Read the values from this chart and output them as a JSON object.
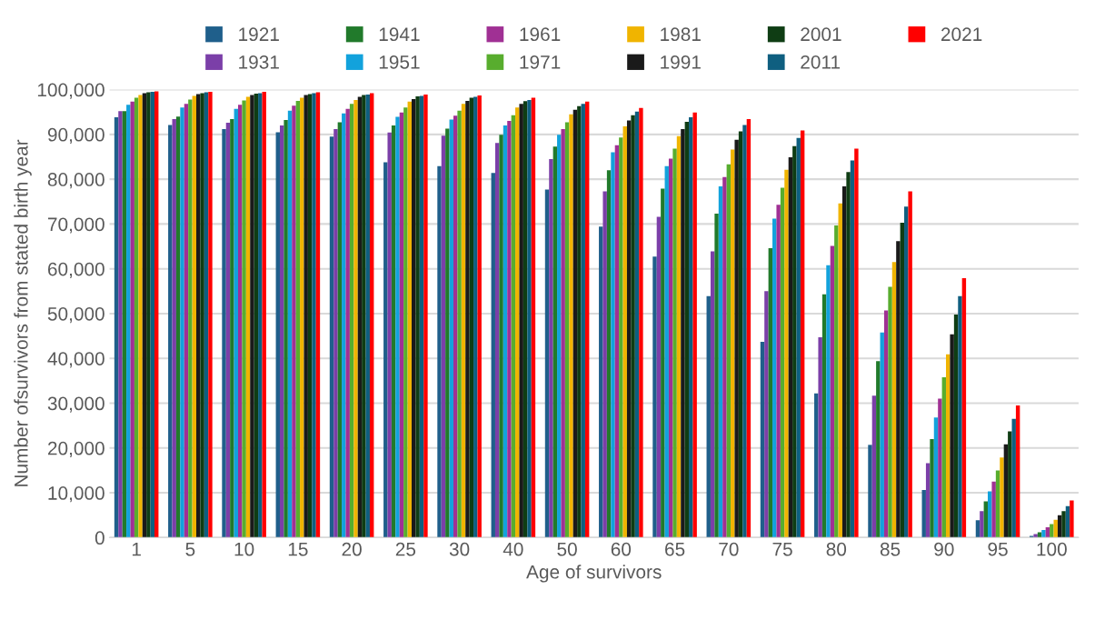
{
  "chart_data": {
    "type": "bar",
    "xlabel": "Age of survivors",
    "ylabel": "Number ofsurvivors from stated birth year",
    "categories": [
      "1",
      "5",
      "10",
      "15",
      "20",
      "25",
      "30",
      "40",
      "50",
      "60",
      "65",
      "70",
      "75",
      "80",
      "85",
      "90",
      "95",
      "100"
    ],
    "ylim": [
      0,
      100000
    ],
    "yticks": [
      {
        "value": 0,
        "label": "0"
      },
      {
        "value": 10000,
        "label": "10,000"
      },
      {
        "value": 20000,
        "label": "20,000"
      },
      {
        "value": 30000,
        "label": "30,000"
      },
      {
        "value": 40000,
        "label": "40,000"
      },
      {
        "value": 50000,
        "label": "50,000"
      },
      {
        "value": 60000,
        "label": "60,000"
      },
      {
        "value": 70000,
        "label": "70,000"
      },
      {
        "value": 80000,
        "label": "80,000"
      },
      {
        "value": 90000,
        "label": "90,000"
      },
      {
        "value": 100000,
        "label": "100,000"
      }
    ],
    "grid": "y",
    "legend": "top",
    "series": [
      {
        "name": "1921",
        "color": "#1f5f8b",
        "values": [
          93800,
          92100,
          91200,
          90500,
          89500,
          83800,
          82900,
          81400,
          77700,
          69400,
          62700,
          53900,
          43700,
          32200,
          20700,
          10600,
          3900,
          400
        ]
      },
      {
        "name": "1931",
        "color": "#7b3fa8",
        "values": [
          95200,
          93400,
          92600,
          92000,
          91200,
          90400,
          89700,
          88100,
          84500,
          77300,
          71600,
          63900,
          55000,
          44700,
          31700,
          16600,
          5900,
          800
        ]
      },
      {
        "name": "1941",
        "color": "#217a2b",
        "values": [
          95200,
          94000,
          93400,
          93200,
          92700,
          92000,
          91300,
          89900,
          87300,
          82000,
          77900,
          72300,
          64600,
          54300,
          39400,
          22000,
          8100,
          1200
        ]
      },
      {
        "name": "1951",
        "color": "#12a2dc",
        "values": [
          96600,
          96000,
          95700,
          95300,
          94700,
          93900,
          93300,
          92000,
          89900,
          86000,
          82900,
          78400,
          71200,
          60800,
          45800,
          26800,
          10300,
          1700
        ]
      },
      {
        "name": "1961",
        "color": "#a03094",
        "values": [
          97300,
          96800,
          96600,
          96400,
          95700,
          94900,
          94200,
          93000,
          91200,
          87600,
          84600,
          80500,
          74300,
          65100,
          50700,
          31000,
          12500,
          2300
        ]
      },
      {
        "name": "1971",
        "color": "#58ad2e",
        "values": [
          98200,
          97800,
          97600,
          97500,
          96800,
          96000,
          95300,
          94300,
          92700,
          89300,
          86800,
          83300,
          78100,
          69700,
          56000,
          35800,
          15000,
          3000
        ]
      },
      {
        "name": "1981",
        "color": "#f0b400",
        "values": [
          98800,
          98600,
          98400,
          98200,
          97700,
          97300,
          96800,
          96000,
          94500,
          91800,
          89600,
          86600,
          82100,
          74600,
          61500,
          40900,
          17900,
          4000
        ]
      },
      {
        "name": "1991",
        "color": "#1a1a1a",
        "values": [
          99200,
          99000,
          98800,
          98800,
          98400,
          97900,
          97500,
          96800,
          95500,
          93100,
          91200,
          88800,
          84900,
          78400,
          66200,
          45400,
          20800,
          5000
        ]
      },
      {
        "name": "2001",
        "color": "#0f3d14",
        "values": [
          99400,
          99200,
          99100,
          99000,
          98800,
          98500,
          98200,
          97400,
          96300,
          94300,
          92800,
          90700,
          87400,
          81600,
          70300,
          49800,
          23700,
          5900
        ]
      },
      {
        "name": "2011",
        "color": "#0f5f80",
        "values": [
          99500,
          99400,
          99200,
          99200,
          98900,
          98600,
          98400,
          97700,
          96800,
          95100,
          93800,
          92100,
          89200,
          84200,
          73900,
          53900,
          26500,
          7000
        ]
      },
      {
        "name": "2021",
        "color": "#ff0000",
        "values": [
          99600,
          99500,
          99500,
          99400,
          99200,
          98900,
          98700,
          98200,
          97300,
          95900,
          94900,
          93400,
          90900,
          86800,
          77300,
          57900,
          29500,
          8300
        ]
      }
    ]
  }
}
